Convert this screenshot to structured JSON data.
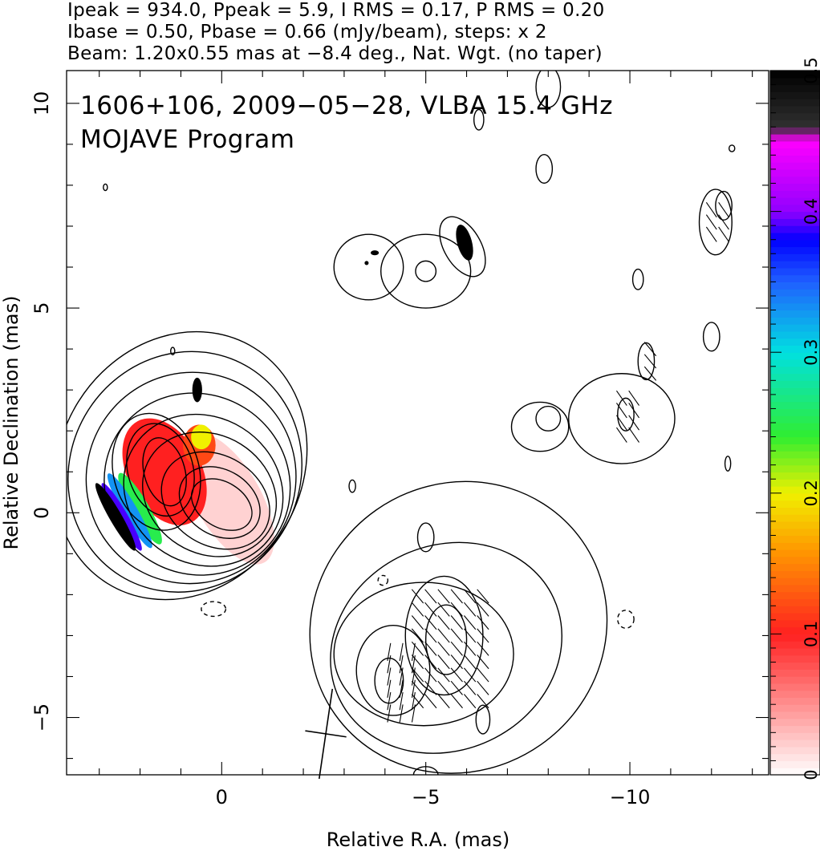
{
  "header": {
    "line1": "Ipeak = 934.0, Ppeak = 5.9, I RMS = 0.17, P RMS = 0.20",
    "line2": "Ibase = 0.50, Pbase = 0.66 (mJy/beam), steps: x 2",
    "line3": "Beam: 1.20x0.55 mas at −8.4 deg., Nat. Wgt. (no taper)"
  },
  "chart_data": {
    "type": "contour",
    "title": "1606+106, 2009−05−28, VLBA 15.4 GHz",
    "subtitle": "MOJAVE Program",
    "xlabel": "Relative R.A. (mas)",
    "ylabel": "Relative Declination (mas)",
    "xlim": [
      3.8,
      -13.4
    ],
    "ylim": [
      -6.4,
      10.8
    ],
    "x_ticks": [
      {
        "v": 0,
        "label": "0"
      },
      {
        "v": -5,
        "label": "−5"
      },
      {
        "v": -10,
        "label": "−10"
      }
    ],
    "y_ticks": [
      {
        "v": -5,
        "label": "−5"
      },
      {
        "v": 0,
        "label": "0"
      },
      {
        "v": 5,
        "label": "5"
      },
      {
        "v": 10,
        "label": "10"
      }
    ],
    "colorbar": {
      "range": [
        0,
        0.5
      ],
      "ticks": [
        {
          "v": 0,
          "label": "0"
        },
        {
          "v": 0.1,
          "label": "0.1"
        },
        {
          "v": 0.2,
          "label": "0.2"
        },
        {
          "v": 0.3,
          "label": "0.3"
        },
        {
          "v": 0.4,
          "label": "0.4"
        },
        {
          "v": 0.5,
          "label": "0.5"
        }
      ],
      "stops": [
        [
          0,
          "#ffffff"
        ],
        [
          0.1,
          "#ff2020"
        ],
        [
          0.16,
          "#ff9900"
        ],
        [
          0.2,
          "#f0f000"
        ],
        [
          0.24,
          "#30ee30"
        ],
        [
          0.3,
          "#00e0e0"
        ],
        [
          0.35,
          "#2060ff"
        ],
        [
          0.38,
          "#0000ff"
        ],
        [
          0.4,
          "#9000ff"
        ],
        [
          0.45,
          "#ff00ff"
        ],
        [
          0.46,
          "#303030"
        ],
        [
          0.5,
          "#000000"
        ]
      ]
    },
    "core_contours": [
      {
        "cx": 0,
        "cy": 0.2,
        "rx": 0.55,
        "ry": 0.8,
        "rot": -58
      },
      {
        "cx": 0.05,
        "cy": 0.25,
        "rx": 0.8,
        "ry": 1.05,
        "rot": -58
      },
      {
        "cx": 0.15,
        "cy": 0.3,
        "rx": 1.1,
        "ry": 1.4,
        "rot": -58
      },
      {
        "cx": 0.3,
        "cy": 0.45,
        "rx": 1.45,
        "ry": 1.7,
        "rot": -58
      },
      {
        "cx": 0.45,
        "cy": 0.55,
        "rx": 1.8,
        "ry": 2.0,
        "rot": -58
      },
      {
        "cx": 0.6,
        "cy": 0.7,
        "rx": 2.2,
        "ry": 2.3,
        "rot": -58
      },
      {
        "cx": 0.75,
        "cy": 0.85,
        "rx": 2.6,
        "ry": 2.55,
        "rot": -58
      },
      {
        "cx": 0.9,
        "cy": 1.0,
        "rx": 3.0,
        "ry": 2.8,
        "rot": -58
      },
      {
        "cx": 1.0,
        "cy": 1.15,
        "rx": 3.4,
        "ry": 2.95,
        "rot": -58
      },
      {
        "cx": 1.4,
        "cy": 1.0,
        "rx": 0.5,
        "ry": 0.85,
        "rot": -15
      },
      {
        "cx": 1.5,
        "cy": 1.05,
        "rx": 0.8,
        "ry": 1.15,
        "rot": -15
      },
      {
        "cx": 1.6,
        "cy": 1.0,
        "rx": 1.05,
        "ry": 1.45,
        "rot": -15
      }
    ],
    "knot_contours": [
      {
        "cx": -5.5,
        "cy": -3.1,
        "rx": 0.5,
        "ry": 0.85,
        "rot": 0
      },
      {
        "cx": -5.45,
        "cy": -3.0,
        "rx": 0.95,
        "ry": 1.45,
        "rot": 0
      },
      {
        "cx": -4.1,
        "cy": -4.1,
        "rx": 0.35,
        "ry": 0.55,
        "rot": 0
      },
      {
        "cx": -4.2,
        "cy": -3.85,
        "rx": 0.9,
        "ry": 1.1,
        "rot": 0
      },
      {
        "cx": -4.95,
        "cy": -3.45,
        "rx": 2.2,
        "ry": 1.75,
        "rot": 0
      },
      {
        "cx": -5.5,
        "cy": -3.3,
        "rx": 2.9,
        "ry": 2.5,
        "rot": -25
      },
      {
        "cx": -5.8,
        "cy": -2.8,
        "rx": 3.7,
        "ry": 3.5,
        "rot": -35
      },
      {
        "cx": -5.0,
        "cy": -0.6,
        "rx": 0.2,
        "ry": 0.35,
        "rot": 0
      },
      {
        "cx": -6.4,
        "cy": -5.05,
        "rx": 0.17,
        "ry": 0.35,
        "rot": 0
      },
      {
        "cx": -5.0,
        "cy": -6.4,
        "rx": 0.3,
        "ry": 0.2,
        "rot": 0
      }
    ],
    "north_contours": [
      {
        "cx": -5.0,
        "cy": 5.9,
        "rx": 1.1,
        "ry": 0.9,
        "rot": 0
      },
      {
        "cx": -5.0,
        "cy": 5.9,
        "rx": 0.25,
        "ry": 0.25,
        "rot": 0
      },
      {
        "cx": -3.6,
        "cy": 6.0,
        "rx": 0.85,
        "ry": 0.8,
        "rot": 0
      },
      {
        "cx": -5.9,
        "cy": 6.5,
        "rx": 0.45,
        "ry": 0.8,
        "rot": -30
      },
      {
        "cx": -9.8,
        "cy": 2.3,
        "rx": 1.3,
        "ry": 1.1,
        "rot": 0
      },
      {
        "cx": -7.8,
        "cy": 2.1,
        "rx": 0.7,
        "ry": 0.6,
        "rot": 0
      },
      {
        "cx": -8.0,
        "cy": 2.3,
        "rx": 0.3,
        "ry": 0.3,
        "rot": 0
      },
      {
        "cx": -9.9,
        "cy": 2.4,
        "rx": 0.2,
        "ry": 0.4,
        "rot": 0
      },
      {
        "cx": -10.4,
        "cy": 3.7,
        "rx": 0.2,
        "ry": 0.45,
        "rot": 0
      },
      {
        "cx": -12.1,
        "cy": 7.1,
        "rx": 0.4,
        "ry": 0.8,
        "rot": 0
      },
      {
        "cx": -12.3,
        "cy": 7.5,
        "rx": 0.2,
        "ry": 0.35,
        "rot": 0
      },
      {
        "cx": -7.9,
        "cy": 8.4,
        "rx": 0.2,
        "ry": 0.35,
        "rot": 0
      },
      {
        "cx": -10.2,
        "cy": 5.7,
        "rx": 0.13,
        "ry": 0.25,
        "rot": 0
      },
      {
        "cx": -12.0,
        "cy": 4.3,
        "rx": 0.2,
        "ry": 0.35,
        "rot": 0
      },
      {
        "cx": -6.3,
        "cy": 9.6,
        "rx": 0.12,
        "ry": 0.25,
        "rot": 0
      },
      {
        "cx": -8.0,
        "cy": 10.4,
        "rx": 0.3,
        "ry": 0.5,
        "rot": 0
      },
      {
        "cx": -12.4,
        "cy": 1.2,
        "rx": 0.07,
        "ry": 0.18,
        "rot": 0
      },
      {
        "cx": 2.85,
        "cy": 7.95,
        "rx": 0.05,
        "ry": 0.08,
        "rot": 0
      },
      {
        "cx": -12.5,
        "cy": 8.9,
        "rx": 0.07,
        "ry": 0.08,
        "rot": 0
      },
      {
        "cx": -3.2,
        "cy": 0.65,
        "rx": 0.08,
        "ry": 0.15,
        "rot": 0
      },
      {
        "cx": 1.2,
        "cy": 3.95,
        "rx": 0.05,
        "ry": 0.09,
        "rot": 0
      }
    ],
    "negative_contours": [
      {
        "cx": 0.2,
        "cy": -2.35,
        "rx": 0.3,
        "ry": 0.18,
        "rot": 0
      },
      {
        "cx": -9.9,
        "cy": -2.6,
        "rx": 0.2,
        "ry": 0.22,
        "rot": 0
      },
      {
        "cx": -3.95,
        "cy": -1.65,
        "rx": 0.12,
        "ry": 0.12,
        "rot": 0
      }
    ],
    "pol_fraction_regions": [
      {
        "cx": -0.15,
        "cy": 0.35,
        "rx": 0.8,
        "ry": 1.8,
        "rot": -30,
        "value": 0.02
      },
      {
        "cx": 1.4,
        "cy": 1.0,
        "rx": 0.9,
        "ry": 1.4,
        "rot": -28,
        "value": 0.1
      },
      {
        "cx": 0.55,
        "cy": 1.65,
        "rx": 0.4,
        "ry": 0.5,
        "rot": 0,
        "value": 0.12
      },
      {
        "cx": 0.5,
        "cy": 1.85,
        "rx": 0.25,
        "ry": 0.3,
        "rot": 0,
        "value": 0.2
      },
      {
        "cx": 2.0,
        "cy": 0.1,
        "rx": 0.22,
        "ry": 1.0,
        "rot": -30,
        "value": 0.25
      },
      {
        "cx": 2.25,
        "cy": 0.05,
        "rx": 0.18,
        "ry": 1.05,
        "rot": -30,
        "value": 0.33
      },
      {
        "cx": 2.45,
        "cy": -0.1,
        "rx": 0.15,
        "ry": 0.95,
        "rot": -30,
        "value": 0.39
      },
      {
        "cx": 2.6,
        "cy": -0.1,
        "rx": 0.15,
        "ry": 0.95,
        "rot": -30,
        "value": 0.5
      },
      {
        "cx": 0.6,
        "cy": 3.0,
        "rx": 0.12,
        "ry": 0.3,
        "rot": 0,
        "value": 0.5
      },
      {
        "cx": -3.75,
        "cy": 6.35,
        "rx": 0.1,
        "ry": 0.06,
        "rot": 0,
        "value": 0.5
      },
      {
        "cx": -5.95,
        "cy": 6.6,
        "rx": 0.18,
        "ry": 0.45,
        "rot": -15,
        "value": 0.5
      },
      {
        "cx": -3.55,
        "cy": 6.1,
        "rx": 0.05,
        "ry": 0.05,
        "rot": 0,
        "value": 0.5
      }
    ],
    "vector_groups": [
      {
        "x0": -6.4,
        "x1": -4.6,
        "y0": -4.6,
        "y1": -1.9,
        "step": 0.32,
        "angle": 40
      },
      {
        "x0": -4.7,
        "x1": -3.9,
        "y0": -4.9,
        "y1": -3.2,
        "step": 0.3,
        "angle": -10
      },
      {
        "x0": -12.3,
        "x1": -12.0,
        "y0": 6.8,
        "y1": 7.5,
        "step": 0.3,
        "angle": 35
      },
      {
        "x0": -10.1,
        "x1": -9.8,
        "y0": 1.9,
        "y1": 2.8,
        "step": 0.3,
        "angle": 35
      },
      {
        "x0": -10.5,
        "x1": -10.3,
        "y0": 3.4,
        "y1": 4.0,
        "step": 0.3,
        "angle": 40
      }
    ],
    "beam": {
      "x": -2.55,
      "y": -5.4,
      "major": 1.2,
      "minor": 0.55,
      "pa": -8.4
    }
  }
}
